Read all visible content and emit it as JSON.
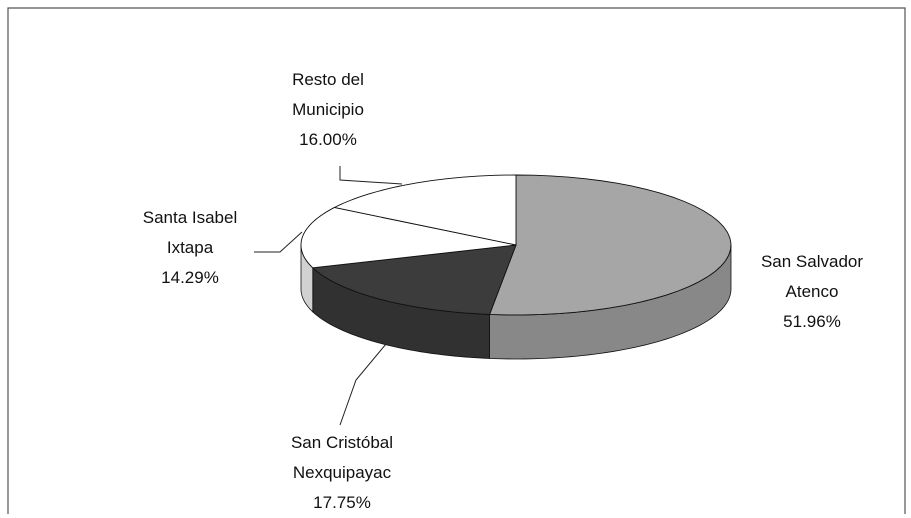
{
  "chart_data": {
    "type": "pie3d",
    "categories": [
      "San Salvador Atenco",
      "San Cristóbal Nexquipayac",
      "Santa Isabel Ixtapa",
      "Resto del Municipio"
    ],
    "values": [
      51.96,
      17.75,
      14.29,
      16.0
    ],
    "value_labels": [
      "51.96%",
      "17.75%",
      "14.29%",
      "16.00%"
    ],
    "colors": [
      "#a6a6a6",
      "#3c3c3c",
      "#ffffff",
      "#ffffff"
    ]
  }
}
